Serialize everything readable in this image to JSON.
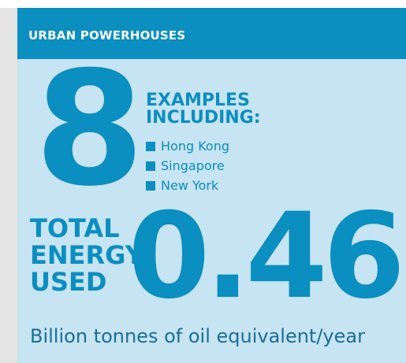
{
  "header": {
    "title": "URBAN POWERHOUSES"
  },
  "examples": {
    "count": "8",
    "heading": [
      "EXAMPLES",
      "INCLUDING:"
    ],
    "items": [
      "Hong Kong",
      "Singapore",
      "New York"
    ]
  },
  "energy": {
    "label": [
      "TOTAL",
      "ENERGY",
      "USED"
    ],
    "value": "0.46",
    "unit": "Billion tonnes of oil equivalent/year"
  }
}
